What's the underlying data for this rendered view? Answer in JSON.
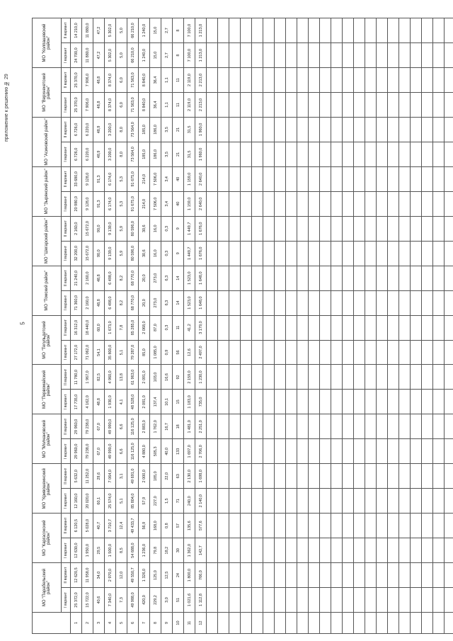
{
  "header": {
    "note": "приложение к решению № 29",
    "page": "5"
  },
  "table": {
    "columns": [
      "МО \"Парабельский район\"",
      "МО \"Каргасокский район\"",
      "МО \"Кривошеинский район\"",
      "МО \"Молчановский район\"",
      "МО \"Первомайский район\"",
      "МО \"Тегульдетский район\"",
      "МО \"Томский район\"",
      "МО \"Шегарский район\"",
      "МО \"Зырянский район\"",
      "МО \"Асиновский район\"",
      "МО \"Верхнекетский район\"",
      "МО \"Колпашевский район\""
    ],
    "subheaders": [
      "I вариант",
      "II вариант"
    ],
    "rows": [
      [
        "1",
        "25 372,0",
        "12 620,5",
        "12 630,0",
        "6 120,5",
        "12 160,0",
        "5 632,0",
        "29 960,0",
        "29 960,0",
        "17 735,0",
        "11 780,0",
        "27 172,0",
        "16 312,0",
        "71 360,0",
        "21 240,0",
        "32 200,0",
        "2 160,0",
        "20 980,0",
        "33 680,0",
        "6 726,0",
        "6 726,0",
        "25 370,0",
        "25 370,0",
        "24 700,0",
        "14 210,0"
      ],
      [
        "2",
        "15 722,0",
        "11 958,0",
        "1 950,0",
        "5 028,0",
        "20 020,0",
        "11 252,0",
        "79 238,0",
        "79 238,0",
        "4 162,0",
        "1 967,0",
        "71 062,0",
        "18 440,0",
        "2 160,0",
        "2 160,0",
        "15 672,0",
        "15 672,0",
        "9 128,0",
        "9 128,0",
        "6 220,0",
        "6 220,0",
        "7 906,0",
        "7 906,0",
        "11 880,0",
        "11 880,0"
      ],
      [
        "3",
        "40,6",
        "34,0",
        "29,5",
        "40,7",
        "60,1",
        "29,6",
        "67,0",
        "67,0",
        "48,8",
        "82,5",
        "54,1",
        "60,0",
        "48,8",
        "48,8",
        "90,0",
        "90,0",
        "91,3",
        "91,3",
        "48,9",
        "48,9",
        "48,8",
        "48,8",
        "47,2",
        "47,2"
      ],
      [
        "4",
        "7 340,0",
        "2 970,0",
        "1 500,0",
        "3 710,7",
        "25 574,0",
        "7 064,0",
        "49 990,0",
        "49 990,0",
        "1 930,0",
        "4 960,0",
        "35 800,0",
        "1 673,0",
        "6 498,0",
        "6 498,0",
        "9 139,0",
        "9 139,0",
        "6 174,0",
        "6 174,0",
        "3 200,0",
        "3 200,0",
        "8 374,0",
        "8 374,0",
        "5 302,0",
        "5 302,0"
      ],
      [
        "5",
        "7,3",
        "12,0",
        "8,5",
        "12,4",
        "5,1",
        "3,1",
        "6,6",
        "6,6",
        "4,1",
        "13,8",
        "5,1",
        "7,8",
        "8,2",
        "8,2",
        "5,9",
        "5,9",
        "5,3",
        "5,3",
        "8,0",
        "8,0",
        "6,0",
        "6,0",
        "5,0",
        "5,0"
      ],
      [
        "6",
        "49 988,0",
        "49 550,7",
        "54 688,0",
        "49 433,7",
        "85 804,0",
        "49 691,0",
        "116 125,0",
        "116 125,0",
        "48 528,0",
        "61 963,0",
        "79 287,0",
        "85 285,0",
        "68 770,0",
        "68 770,0",
        "80 596,0",
        "80 596,0",
        "91 675,0",
        "91 675,0",
        "73 564,0",
        "73 564,0",
        "71 563,0",
        "71 563,0",
        "66 210,0",
        "66 210,0"
      ],
      [
        "7",
        "420,0",
        "1 326,0",
        "1 236,0",
        "56,9",
        "57,9",
        "2 000,0",
        "4 880,0",
        "2 883,0",
        "2 091,0",
        "2 091,0",
        "85,0",
        "2 068,0",
        "20,0",
        "20,0",
        "30,6",
        "30,6",
        "214,0",
        "214,0",
        "185,0",
        "185,0",
        "8 840,0",
        "8 840,0",
        "1 240,0",
        "1 240,0"
      ],
      [
        "8",
        "229,2",
        "125,0",
        "79,8",
        "168,0",
        "227,0",
        "185,0",
        "505,3",
        "1 762,0",
        "137,4",
        "103,0",
        "1 085,0",
        "87,0",
        "273,0",
        "273,0",
        "16,0",
        "16,0",
        "7 506,0",
        "7 506,0",
        "186,0",
        "186,0",
        "36,4",
        "36,4",
        "15,0",
        "15,0"
      ],
      [
        "9",
        "3,0",
        "12,5",
        "18,2",
        "0,8",
        "1,5",
        "22,0",
        "40,0",
        "16,7",
        "10,1",
        "16,6",
        "0,9",
        "0,3",
        "6,3",
        "6,3",
        "0,3",
        "0,3",
        "3,4",
        "3,4",
        "3,5",
        "3,5",
        "1,1",
        "1,1",
        "2,7",
        "2,7"
      ],
      [
        "10",
        "51",
        "24",
        "30",
        "57",
        "71",
        "63",
        "133",
        "18",
        "15",
        "92",
        "56",
        "11",
        "14",
        "14",
        "9",
        "9",
        "40",
        "40",
        "21",
        "21",
        "11",
        "11",
        "8",
        "8"
      ],
      [
        "11",
        "1 021,6",
        "1 800,0",
        "1 362,0",
        "135,6",
        "240,0",
        "2 130,0",
        "1 697,0",
        "1 481,0",
        "1 183,0",
        "2 159,0",
        "12,6",
        "41,2",
        "1 523,0",
        "1 523,0",
        "1 449,7",
        "1 449,7",
        "1 159,0",
        "1 159,0",
        "31,5",
        "31,5",
        "2 119,0",
        "2 119,0",
        "7 100,0",
        "7 100,0"
      ],
      [
        "12",
        "1 112,8",
        "766,0",
        "142,7",
        "577,6",
        "2 140,0",
        "1 698,0",
        "2 706,0",
        "2 251,0",
        "735,0",
        "1 230,0",
        "2 497,0",
        "3 179,0",
        "1 648,0",
        "1 648,0",
        "1 676,0",
        "1 676,0",
        "2 640,0",
        "2 640,0",
        "1 960,0",
        "1 960,0",
        "2 213,0",
        "2 213,0",
        "1 213,0",
        "1 213,0"
      ]
    ]
  }
}
